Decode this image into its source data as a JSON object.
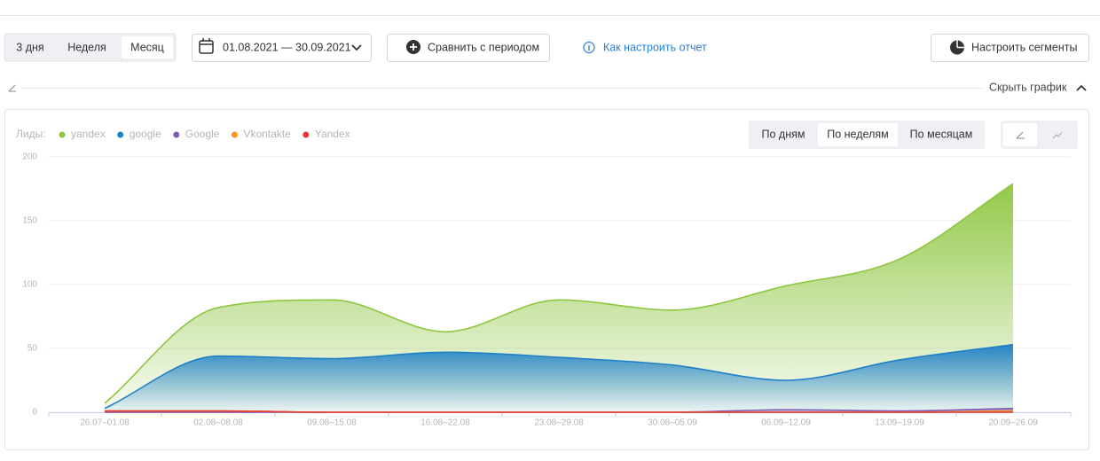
{
  "ui": {
    "tabs": [
      "3 дня",
      "Неделя",
      "Месяц"
    ],
    "date_range": "01.08.2021 — 30.09.2021",
    "compare_button": "Сравнить с периодом",
    "help_link": "Как настроить отчет",
    "segments_button": "Настроить сегменты",
    "hide_chart": "Скрыть график",
    "period_buttons": [
      "По дням",
      "По неделям",
      "По месяцам"
    ]
  },
  "chart_data": {
    "type": "area",
    "legend_title": "Лиды:",
    "categories": [
      "26.07–01.08",
      "02.08–08.08",
      "09.08–15.08",
      "16.08–22.08",
      "23.08–29.08",
      "30.08–05.09",
      "06.09–12.09",
      "13.09–19.09",
      "20.09–26.09"
    ],
    "series": [
      {
        "name": "yandex",
        "color": "#8dc63f",
        "values": [
          7,
          82,
          88,
          63,
          88,
          80,
          99,
          120,
          179
        ]
      },
      {
        "name": "google",
        "color": "#1f80c8",
        "values": [
          3,
          44,
          42,
          47,
          43,
          37,
          25,
          41,
          53
        ]
      },
      {
        "name": "Google",
        "color": "#7e5bb5",
        "values": [
          0,
          0,
          0,
          0,
          0,
          0,
          2,
          1,
          3
        ]
      },
      {
        "name": "Vkontakte",
        "color": "#f7931e",
        "values": [
          1,
          1,
          0,
          0,
          0,
          0,
          0,
          0,
          1
        ]
      },
      {
        "name": "Yandex",
        "color": "#e53935",
        "values": [
          1,
          1,
          0,
          0,
          0,
          0,
          0,
          0,
          0
        ]
      }
    ],
    "ylim": [
      0,
      200
    ],
    "yticks": [
      0,
      50,
      100,
      150,
      200
    ],
    "grid": true
  }
}
